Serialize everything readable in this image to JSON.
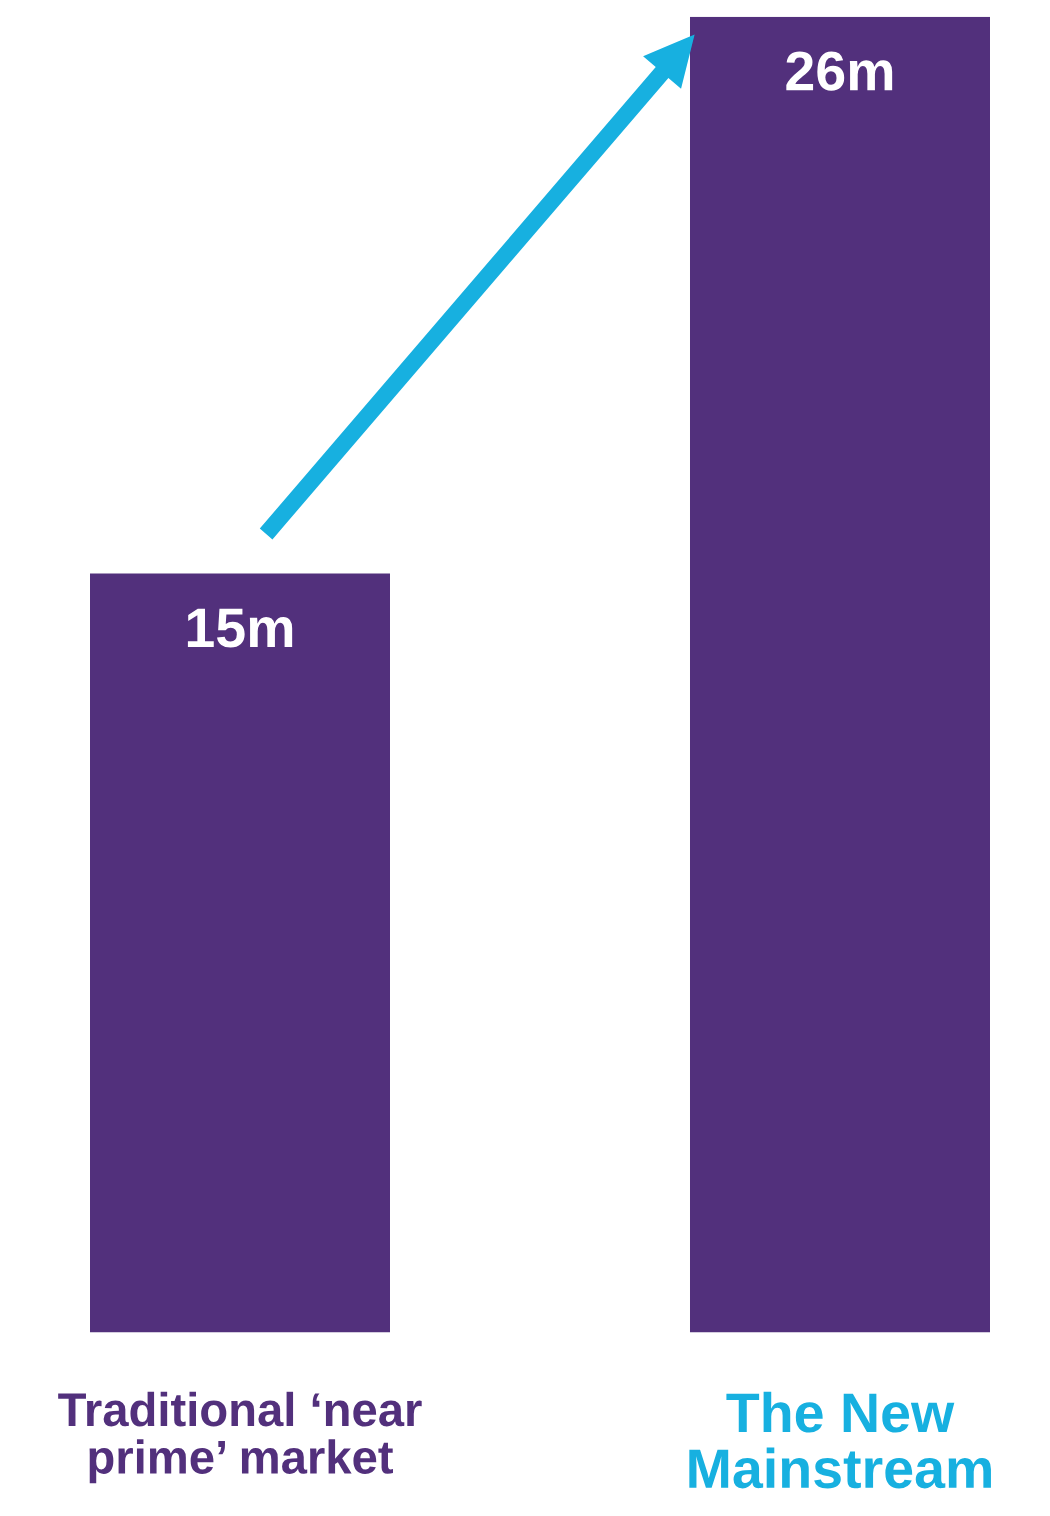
{
  "chart_data": {
    "type": "bar",
    "categories": [
      "Traditional ‘near\nprime’ market",
      "The New\nMainstream"
    ],
    "values": [
      15,
      26
    ],
    "value_labels": [
      "15m",
      "26m"
    ],
    "color": "#52307c"
  }
}
